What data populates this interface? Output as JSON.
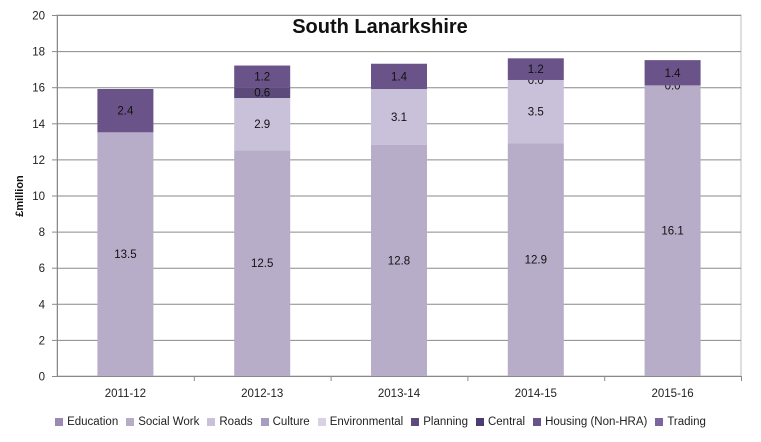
{
  "chart_data": {
    "type": "bar",
    "stacked": true,
    "title": "South Lanarkshire",
    "ylabel": "£million",
    "xlabel": "",
    "ylim": [
      0,
      20
    ],
    "yticks": [
      0,
      2,
      4,
      6,
      8,
      10,
      12,
      14,
      16,
      18,
      20
    ],
    "grid": true,
    "legend_position": "bottom",
    "categories": [
      "2011-12",
      "2012-13",
      "2013-14",
      "2014-15",
      "2015-16"
    ],
    "series": [
      {
        "name": "Education",
        "color": "#9b8ab4",
        "values": [
          0,
          0,
          0,
          0,
          0
        ]
      },
      {
        "name": "Social Work",
        "color": "#b7adc9",
        "values": [
          13.5,
          12.5,
          12.8,
          12.9,
          16.1
        ]
      },
      {
        "name": "Roads",
        "color": "#c9c1d9",
        "values": [
          0,
          2.9,
          3.1,
          3.5,
          0
        ]
      },
      {
        "name": "Culture",
        "color": "#a99cc1",
        "values": [
          0,
          0,
          0,
          0,
          0
        ]
      },
      {
        "name": "Environmental",
        "color": "#d8d2e4",
        "values": [
          0,
          0,
          0,
          0.0,
          0.0
        ]
      },
      {
        "name": "Planning",
        "color": "#5b4a7a",
        "values": [
          0,
          0.6,
          0,
          0,
          0
        ]
      },
      {
        "name": "Central",
        "color": "#4f3c6f",
        "values": [
          0,
          0,
          0,
          0,
          0
        ]
      },
      {
        "name": "Housing (Non-HRA)",
        "color": "#6a5388",
        "values": [
          2.4,
          1.2,
          1.4,
          1.2,
          1.4
        ]
      },
      {
        "name": "Trading",
        "color": "#7d66a0",
        "values": [
          0,
          0,
          0,
          0,
          0
        ]
      }
    ],
    "data_labels": [
      {
        "category": "2011-12",
        "series": "Social Work",
        "text": "13.5"
      },
      {
        "category": "2011-12",
        "series": "Housing (Non-HRA)",
        "text": "2.4"
      },
      {
        "category": "2012-13",
        "series": "Social Work",
        "text": "12.5"
      },
      {
        "category": "2012-13",
        "series": "Roads",
        "text": "2.9"
      },
      {
        "category": "2012-13",
        "series": "Planning",
        "text": "0.6"
      },
      {
        "category": "2012-13",
        "series": "Housing (Non-HRA)",
        "text": "1.2"
      },
      {
        "category": "2013-14",
        "series": "Social Work",
        "text": "12.8"
      },
      {
        "category": "2013-14",
        "series": "Roads",
        "text": "3.1"
      },
      {
        "category": "2013-14",
        "series": "Housing (Non-HRA)",
        "text": "1.4"
      },
      {
        "category": "2014-15",
        "series": "Social Work",
        "text": "12.9"
      },
      {
        "category": "2014-15",
        "series": "Roads",
        "text": "3.5"
      },
      {
        "category": "2014-15",
        "series": "Environmental",
        "text": "0.0"
      },
      {
        "category": "2014-15",
        "series": "Housing (Non-HRA)",
        "text": "1.2"
      },
      {
        "category": "2015-16",
        "series": "Social Work",
        "text": "16.1"
      },
      {
        "category": "2015-16",
        "series": "Environmental",
        "text": "0.0"
      },
      {
        "category": "2015-16",
        "series": "Housing (Non-HRA)",
        "text": "1.4"
      }
    ]
  }
}
